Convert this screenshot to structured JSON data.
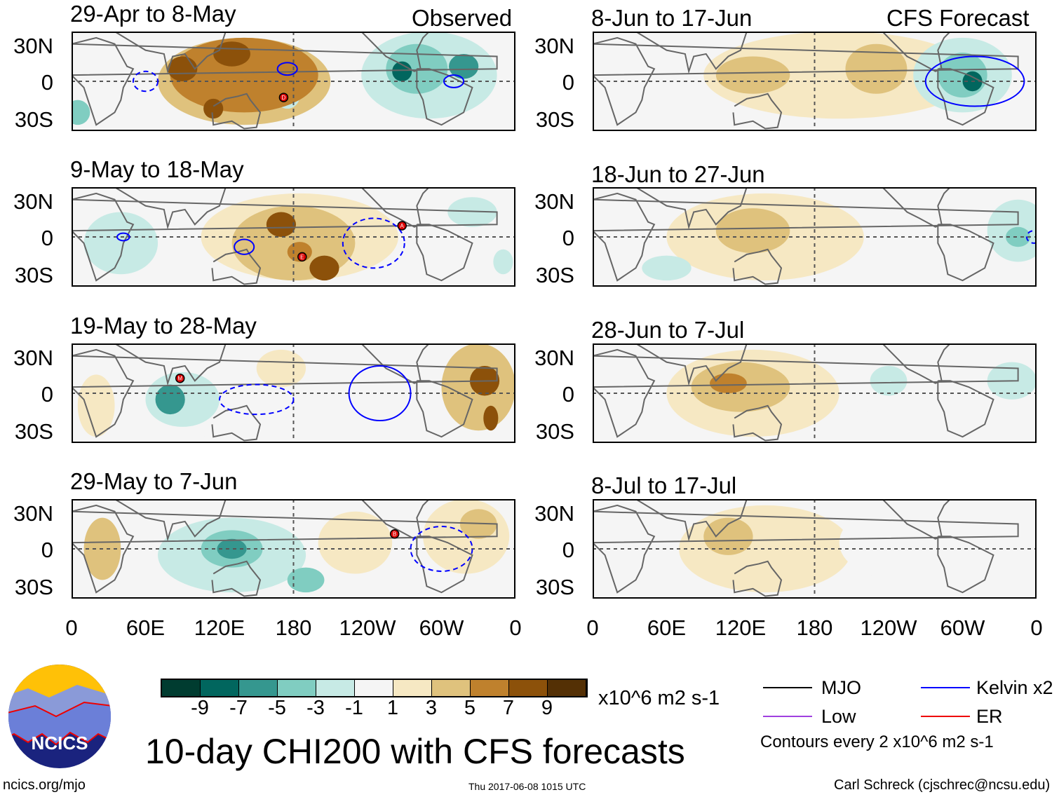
{
  "header": {
    "left_label": "Observed",
    "right_label": "CFS Forecast"
  },
  "footer": {
    "title": "10-day CHI200 with CFS forecasts",
    "url": "ncics.org/mjo",
    "timestamp": "Thu 2017-06-08 1015 UTC",
    "author": "Carl Schreck (cjschrec@ncsu.edu)",
    "logo_text": "NCICS"
  },
  "legend": {
    "mjo": "MJO",
    "kelvin": "Kelvin x2",
    "low": "Low",
    "er": "ER",
    "contours_note": "Contours every 2 x10^6 m2 s-1",
    "mjo_color": "#000000",
    "kelvin_color": "#0000ff",
    "low_color": "#a040e0",
    "er_color": "#e00000"
  },
  "chart_data": {
    "type": "heatmap",
    "title": "10-day CHI200 with CFS forecasts",
    "units": "x10^6 m2 s-1",
    "colorbar": {
      "ticks": [
        "-9",
        "-7",
        "-5",
        "-3",
        "-1",
        "1",
        "3",
        "5",
        "7",
        "9"
      ],
      "colors": [
        "#003c30",
        "#01665e",
        "#35978f",
        "#80cdc1",
        "#c7eae5",
        "#f5f5f5",
        "#f6e8c3",
        "#dfc27d",
        "#bf812d",
        "#8c510a",
        "#543005"
      ]
    },
    "lat_ticks": [
      "30N",
      "0",
      "30S"
    ],
    "lon_ticks": [
      "0",
      "60E",
      "120E",
      "180",
      "120W",
      "60W",
      "0"
    ],
    "lat_range": [
      -40,
      40
    ],
    "lon_range": [
      0,
      360
    ],
    "panels": [
      {
        "title": "29-Apr to 8-May",
        "column": "observed",
        "storms": [
          {
            "label": "D",
            "lon": 172,
            "lat": -13
          }
        ],
        "anomalies": [
          [
            140,
            0,
            70,
            35,
            3
          ],
          [
            140,
            5,
            60,
            30,
            5
          ],
          [
            90,
            10,
            12,
            10,
            7
          ],
          [
            130,
            22,
            15,
            10,
            7
          ],
          [
            115,
            -22,
            8,
            8,
            7
          ],
          [
            175,
            -12,
            10,
            10,
            -3
          ],
          [
            290,
            5,
            55,
            35,
            -3
          ],
          [
            280,
            10,
            25,
            20,
            -5
          ],
          [
            268,
            8,
            8,
            8,
            -9
          ],
          [
            318,
            12,
            12,
            10,
            -7
          ],
          [
            5,
            -25,
            10,
            10,
            -5
          ],
          [
            40,
            35,
            20,
            8,
            -1
          ]
        ],
        "contours": [
          [
            60,
            0,
            10,
            8,
            "#0000ff",
            1
          ],
          [
            175,
            10,
            8,
            5,
            "#0000ff",
            0
          ],
          [
            310,
            0,
            8,
            5,
            "#0000ff",
            0
          ]
        ]
      },
      {
        "title": "9-May to 18-May",
        "column": "observed",
        "storms": [
          {
            "label": "A",
            "lon": 268,
            "lat": 9
          },
          {
            "label": "E",
            "lon": 187,
            "lat": -16
          }
        ],
        "anomalies": [
          [
            185,
            0,
            80,
            35,
            1
          ],
          [
            180,
            -5,
            50,
            30,
            3
          ],
          [
            170,
            10,
            12,
            10,
            7
          ],
          [
            185,
            -12,
            10,
            8,
            5
          ],
          [
            205,
            -25,
            12,
            10,
            7
          ],
          [
            40,
            -5,
            30,
            25,
            -3
          ],
          [
            325,
            20,
            20,
            12,
            -3
          ],
          [
            350,
            -20,
            8,
            10,
            -3
          ],
          [
            20,
            20,
            25,
            15,
            -1
          ]
        ],
        "contours": [
          [
            42,
            0,
            5,
            3,
            "#0000ff",
            0
          ],
          [
            140,
            -8,
            8,
            6,
            "#0000ff",
            0
          ],
          [
            245,
            -5,
            25,
            20,
            "#0000ff",
            1
          ]
        ]
      },
      {
        "title": "19-May to 28-May",
        "column": "observed",
        "storms": [
          {
            "label": "M",
            "lon": 88,
            "lat": 12
          }
        ],
        "anomalies": [
          [
            100,
            -5,
            50,
            30,
            -1
          ],
          [
            90,
            -5,
            30,
            22,
            -3
          ],
          [
            80,
            -5,
            12,
            12,
            -7
          ],
          [
            230,
            5,
            40,
            25,
            -1
          ],
          [
            330,
            5,
            30,
            35,
            3
          ],
          [
            335,
            10,
            12,
            12,
            7
          ],
          [
            340,
            -20,
            6,
            10,
            7
          ],
          [
            20,
            -10,
            15,
            25,
            1
          ],
          [
            170,
            20,
            20,
            15,
            1
          ]
        ],
        "contours": [
          [
            250,
            0,
            25,
            22,
            "#0000ff",
            0
          ],
          [
            150,
            -5,
            30,
            12,
            "#0000ff",
            1
          ]
        ]
      },
      {
        "title": "29-May to 7-Jun",
        "column": "observed",
        "storms": [
          {
            "label": "B",
            "lon": 262,
            "lat": 12
          }
        ],
        "anomalies": [
          [
            130,
            -5,
            60,
            30,
            -3
          ],
          [
            130,
            0,
            25,
            15,
            -5
          ],
          [
            130,
            0,
            12,
            8,
            -7
          ],
          [
            190,
            -25,
            15,
            10,
            -5
          ],
          [
            230,
            5,
            30,
            25,
            1
          ],
          [
            320,
            10,
            35,
            30,
            1
          ],
          [
            330,
            20,
            15,
            12,
            3
          ],
          [
            25,
            0,
            15,
            25,
            3
          ],
          [
            60,
            30,
            20,
            10,
            -1
          ]
        ],
        "contours": [
          [
            300,
            0,
            25,
            18,
            "#0000ff",
            1
          ]
        ]
      },
      {
        "title": "8-Jun to 17-Jun",
        "column": "forecast",
        "storms": [],
        "anomalies": [
          [
            200,
            5,
            110,
            35,
            1
          ],
          [
            230,
            10,
            25,
            20,
            3
          ],
          [
            130,
            5,
            30,
            15,
            3
          ],
          [
            300,
            5,
            40,
            30,
            -3
          ],
          [
            300,
            5,
            20,
            18,
            -5
          ],
          [
            308,
            0,
            8,
            8,
            -9
          ],
          [
            20,
            -25,
            20,
            12,
            -1
          ]
        ],
        "contours": [
          [
            310,
            0,
            40,
            20,
            "#0000ff",
            0
          ]
        ]
      },
      {
        "title": "18-Jun to 27-Jun",
        "column": "forecast",
        "storms": [],
        "anomalies": [
          [
            140,
            0,
            80,
            35,
            1
          ],
          [
            130,
            5,
            30,
            18,
            3
          ],
          [
            345,
            5,
            25,
            25,
            -3
          ],
          [
            345,
            0,
            10,
            8,
            -5
          ],
          [
            60,
            -25,
            20,
            10,
            -3
          ],
          [
            30,
            0,
            20,
            20,
            -1
          ]
        ],
        "contours": [
          [
            358,
            0,
            6,
            5,
            "#0000ff",
            1
          ]
        ]
      },
      {
        "title": "28-Jun to 7-Jul",
        "column": "forecast",
        "storms": [],
        "anomalies": [
          [
            130,
            0,
            70,
            35,
            1
          ],
          [
            120,
            5,
            40,
            20,
            3
          ],
          [
            110,
            8,
            15,
            8,
            5
          ],
          [
            250,
            10,
            50,
            30,
            -1
          ],
          [
            240,
            10,
            15,
            12,
            -3
          ],
          [
            340,
            10,
            20,
            15,
            -3
          ]
        ],
        "contours": []
      },
      {
        "title": "8-Jul to 17-Jul",
        "column": "forecast",
        "storms": [],
        "anomalies": [
          [
            140,
            0,
            70,
            35,
            1
          ],
          [
            110,
            10,
            20,
            15,
            3
          ],
          [
            250,
            5,
            50,
            30,
            -1
          ],
          [
            40,
            -10,
            20,
            20,
            -1
          ]
        ],
        "contours": []
      }
    ]
  }
}
